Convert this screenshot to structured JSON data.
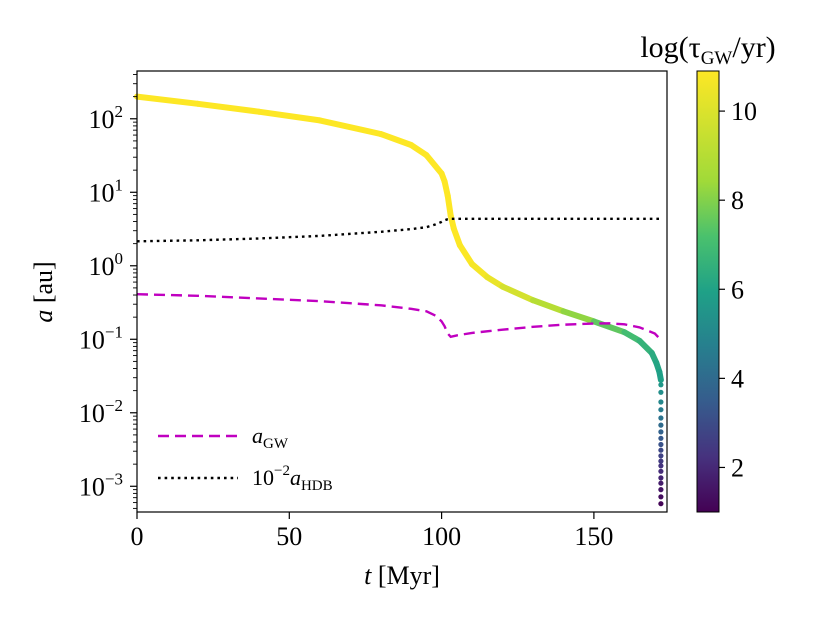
{
  "chart_data": {
    "type": "line",
    "title": "",
    "xlabel": "t [Myr]",
    "ylabel": "a [au]",
    "xlim": [
      0,
      174
    ],
    "ylim_log10": [
      -3.35,
      2.65
    ],
    "yscale": "log",
    "x_ticks": [
      0,
      50,
      100,
      150
    ],
    "x_tick_labels": [
      "0",
      "50",
      "100",
      "150"
    ],
    "y_ticks_exponents": [
      -3,
      -2,
      -1,
      0,
      1,
      2
    ],
    "y_tick_labels": [
      "10",
      "10",
      "10",
      "10",
      "10",
      "10"
    ],
    "y_tick_exponent_labels": [
      "−3",
      "−2",
      "−1",
      "0",
      "1",
      "2"
    ],
    "legend_position": "lower-left",
    "colorbar": {
      "title": "log(τGW/yr)",
      "title_main": "log(τ",
      "title_sub": "GW",
      "title_tail": "/yr)",
      "range": [
        1,
        10.9
      ],
      "ticks": [
        2,
        4,
        6,
        8,
        10
      ],
      "tick_labels": [
        "2",
        "4",
        "6",
        "8",
        "10"
      ],
      "colormap": "viridis"
    },
    "series": [
      {
        "name": "a",
        "legend": false,
        "style": "solid-colormapped",
        "x": [
          0,
          20,
          40,
          60,
          80,
          90,
          95,
          100,
          101,
          102,
          103,
          104,
          106,
          110,
          115,
          120,
          130,
          140,
          150,
          160,
          165,
          169,
          170.5,
          171.5,
          172
        ],
        "y": [
          200,
          160,
          125,
          95,
          62,
          44,
          32,
          18,
          14,
          9,
          4.8,
          3.2,
          1.9,
          1.05,
          0.7,
          0.52,
          0.34,
          0.24,
          0.175,
          0.125,
          0.095,
          0.065,
          0.048,
          0.036,
          0.028
        ],
        "color_value": [
          10.9,
          10.9,
          10.9,
          10.9,
          10.9,
          10.9,
          10.9,
          10.9,
          10.9,
          10.9,
          10.9,
          10.9,
          10.9,
          10.8,
          10.6,
          10.2,
          9.4,
          8.6,
          7.8,
          7.2,
          6.8,
          6.4,
          6.2,
          6.0,
          5.8
        ]
      },
      {
        "name": "a (late plunge)",
        "legend": false,
        "style": "dots-colormapped",
        "x": [
          172,
          172,
          172,
          172,
          172,
          172,
          172,
          172,
          172,
          172,
          172,
          172,
          172,
          172,
          172,
          172,
          172,
          172,
          172
        ],
        "y": [
          0.024,
          0.019,
          0.014,
          0.011,
          0.0085,
          0.0068,
          0.0055,
          0.0045,
          0.0037,
          0.0031,
          0.0026,
          0.0022,
          0.0019,
          0.0016,
          0.0013,
          0.0011,
          0.0009,
          0.00072,
          0.00058
        ],
        "color_value": [
          5.6,
          5.3,
          5.0,
          4.6,
          4.3,
          4.0,
          3.7,
          3.4,
          3.2,
          2.9,
          2.7,
          2.5,
          2.3,
          2.1,
          1.9,
          1.7,
          1.5,
          1.3,
          1.1
        ]
      },
      {
        "name": "aGW",
        "legend_main": "a",
        "legend_sub": "GW",
        "legend": true,
        "style": "dashed",
        "color": "#c000c0",
        "x": [
          0,
          20,
          40,
          60,
          80,
          90,
          95,
          98,
          100,
          101,
          102,
          103,
          105,
          110,
          120,
          130,
          140,
          150,
          155,
          160,
          165,
          170,
          172
        ],
        "y": [
          0.41,
          0.39,
          0.36,
          0.33,
          0.29,
          0.26,
          0.24,
          0.21,
          0.175,
          0.15,
          0.12,
          0.108,
          0.113,
          0.122,
          0.135,
          0.148,
          0.158,
          0.164,
          0.165,
          0.16,
          0.145,
          0.12,
          0.098
        ]
      },
      {
        "name": "10^-2 aHDB",
        "legend_prefix": "10",
        "legend_exp": "−2",
        "legend_main": "a",
        "legend_sub": "HDB",
        "legend": true,
        "style": "dotted",
        "color": "#000000",
        "x": [
          0,
          20,
          40,
          60,
          80,
          90,
          95,
          98,
          100,
          101,
          102,
          103,
          104,
          110,
          130,
          150,
          172
        ],
        "y": [
          2.15,
          2.22,
          2.35,
          2.55,
          2.9,
          3.15,
          3.35,
          3.65,
          3.95,
          4.15,
          4.3,
          4.35,
          4.35,
          4.35,
          4.35,
          4.35,
          4.35
        ]
      }
    ]
  }
}
